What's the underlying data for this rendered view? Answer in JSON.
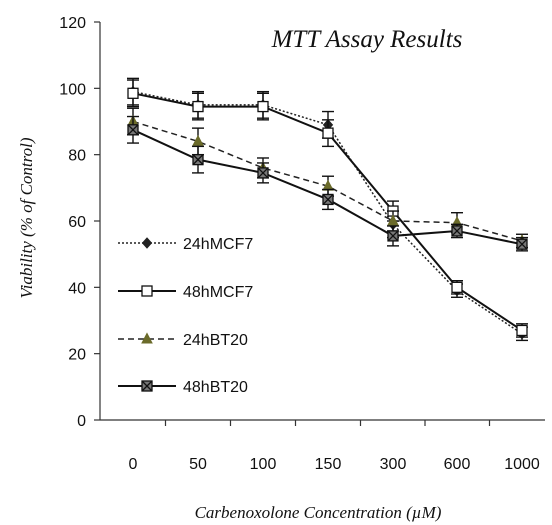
{
  "chart_data": {
    "type": "line",
    "title": "MTT Assay Results",
    "xlabel": "Carbenoxolone Concentration (µM)",
    "ylabel": "Viability (% of Control)",
    "categories": [
      "0",
      "50",
      "100",
      "150",
      "300",
      "600",
      "1000"
    ],
    "ylim": [
      0,
      120
    ],
    "yticks": [
      "0",
      "20",
      "40",
      "60",
      "80",
      "100",
      "120"
    ],
    "grid": false,
    "legend_position": "left-middle",
    "series": [
      {
        "name": "24hMCF7",
        "values": [
          99,
          95,
          95,
          89,
          59,
          39,
          26
        ],
        "errors": [
          4,
          4,
          4,
          4,
          4,
          2,
          2
        ],
        "marker": "diamond",
        "line_style": "dotted",
        "color": "#222222"
      },
      {
        "name": "48hMCF7",
        "values": [
          98.5,
          94.5,
          94.5,
          86.5,
          63,
          40,
          27
        ],
        "errors": [
          4,
          4,
          4,
          4,
          3,
          2,
          2
        ],
        "marker": "open-square",
        "line_style": "solid",
        "color": "#111111"
      },
      {
        "name": "24hBT20",
        "values": [
          90,
          84,
          76,
          70.5,
          60,
          59.5,
          54
        ],
        "errors": [
          4,
          4,
          3,
          3,
          3,
          3,
          2
        ],
        "marker": "triangle",
        "line_style": "dashed",
        "color": "#222222",
        "marker_color": "#6b6b2a"
      },
      {
        "name": "48hBT20",
        "values": [
          87.5,
          78.5,
          74.5,
          66.5,
          55.5,
          57,
          53
        ],
        "errors": [
          4,
          4,
          3,
          3,
          3,
          2,
          2
        ],
        "marker": "x-square",
        "line_style": "solid",
        "color": "#111111"
      }
    ]
  }
}
